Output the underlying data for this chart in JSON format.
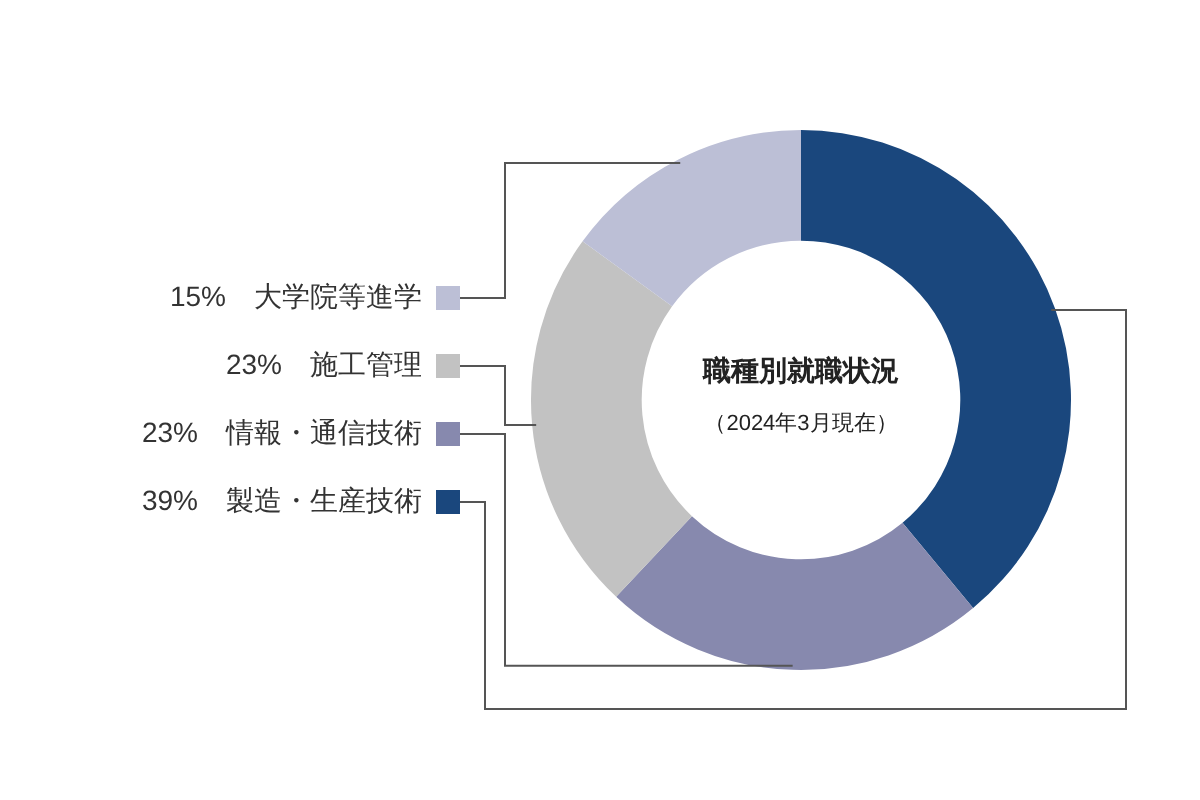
{
  "chart_data": {
    "type": "donut",
    "title": "職種別就職状況",
    "subtitle": "（2024年3月現在）",
    "categories": [
      "製造・生産技術",
      "情報・通信技術",
      "施工管理",
      "大学院等進学"
    ],
    "values": [
      39,
      23,
      23,
      15
    ],
    "value_labels": [
      "39%",
      "23%",
      "23%",
      "15%"
    ],
    "colors": [
      "#1a477d",
      "#8789ae",
      "#c2c2c2",
      "#bcbfd6"
    ],
    "legend": "left"
  }
}
